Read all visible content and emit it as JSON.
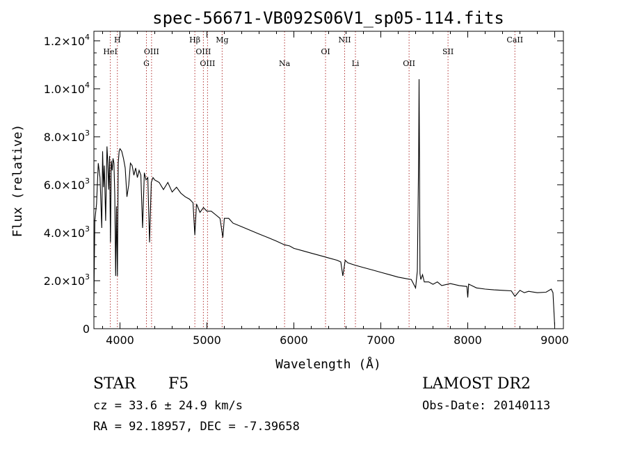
{
  "chart_data": {
    "type": "line",
    "title": "spec-56671-VB092S06V1_sp05-114.fits",
    "xlabel": "Wavelength (Å)",
    "ylabel": "Flux (relative)",
    "xlim": [
      3700,
      9100
    ],
    "ylim": [
      0,
      12400
    ],
    "xticks": [
      4000,
      5000,
      6000,
      7000,
      8000,
      9000
    ],
    "yticks": [
      {
        "value": 0,
        "mantissa": "0",
        "exp": ""
      },
      {
        "value": 2000,
        "mantissa": "2.0×10",
        "exp": "3"
      },
      {
        "value": 4000,
        "mantissa": "4.0×10",
        "exp": "3"
      },
      {
        "value": 6000,
        "mantissa": "6.0×10",
        "exp": "3"
      },
      {
        "value": 8000,
        "mantissa": "8.0×10",
        "exp": "3"
      },
      {
        "value": 10000,
        "mantissa": "1.0×10",
        "exp": "4"
      },
      {
        "value": 12000,
        "mantissa": "1.2×10",
        "exp": "4"
      }
    ],
    "grid": false,
    "line_color": "#000000",
    "marker_color": "#b03030",
    "series": [
      {
        "x": [
          3700,
          3710,
          3730,
          3750,
          3770,
          3790,
          3800,
          3810,
          3820,
          3835,
          3850,
          3860,
          3870,
          3880,
          3890,
          3900,
          3910,
          3920,
          3930,
          3940,
          3950,
          3960,
          3970,
          3980,
          3990,
          4000,
          4020,
          4040,
          4060,
          4080,
          4101,
          4120,
          4140,
          4160,
          4180,
          4200,
          4220,
          4240,
          4260,
          4280,
          4300,
          4320,
          4340,
          4360,
          4380,
          4400,
          4450,
          4500,
          4550,
          4600,
          4650,
          4700,
          4750,
          4800,
          4840,
          4861,
          4880,
          4920,
          4960,
          5000,
          5050,
          5100,
          5150,
          5183,
          5200,
          5250,
          5300,
          5400,
          5500,
          5600,
          5700,
          5800,
          5890,
          5950,
          6000,
          6100,
          6200,
          6300,
          6400,
          6500,
          6540,
          6563,
          6590,
          6620,
          6700,
          6800,
          6900,
          7000,
          7100,
          7200,
          7300,
          7350,
          7400,
          7420,
          7435,
          7440,
          7445,
          7450,
          7460,
          7480,
          7500,
          7550,
          7600,
          7650,
          7700,
          7800,
          7900,
          7990,
          8000,
          8010,
          8100,
          8200,
          8300,
          8400,
          8500,
          8542,
          8600,
          8650,
          8700,
          8800,
          8900,
          8960,
          8980,
          9000
        ],
        "y": [
          1200,
          4500,
          5200,
          6900,
          6300,
          4200,
          7400,
          5900,
          6800,
          4500,
          7600,
          6900,
          5800,
          7200,
          3600,
          7000,
          6600,
          7100,
          6900,
          5600,
          2200,
          5100,
          2200,
          6900,
          7400,
          7500,
          7400,
          7100,
          6700,
          5500,
          6000,
          6900,
          6800,
          6400,
          6700,
          6300,
          6600,
          6400,
          4200,
          6500,
          6200,
          6300,
          3600,
          6100,
          6300,
          6200,
          6100,
          5800,
          6100,
          5700,
          5900,
          5650,
          5500,
          5400,
          5250,
          3900,
          5200,
          4850,
          5050,
          4900,
          4900,
          4750,
          4600,
          3800,
          4600,
          4600,
          4400,
          4250,
          4100,
          3950,
          3800,
          3650,
          3500,
          3450,
          3350,
          3250,
          3150,
          3050,
          2950,
          2850,
          2780,
          2200,
          2850,
          2750,
          2650,
          2550,
          2450,
          2350,
          2250,
          2150,
          2080,
          2050,
          1700,
          2400,
          7200,
          10400,
          7100,
          2300,
          2050,
          2250,
          1950,
          1950,
          1850,
          1950,
          1800,
          1880,
          1800,
          1760,
          1300,
          1860,
          1700,
          1650,
          1620,
          1600,
          1580,
          1350,
          1600,
          1500,
          1560,
          1500,
          1520,
          1650,
          1500,
          120
        ]
      }
    ],
    "line_markers": [
      {
        "label": "H",
        "wavelength": 3970,
        "row": 0
      },
      {
        "label": "HeI",
        "wavelength": 3889,
        "row": 1
      },
      {
        "label": "OIII",
        "wavelength": 4363,
        "row": 1
      },
      {
        "label": "G",
        "wavelength": 4304,
        "row": 2
      },
      {
        "label": "Hβ",
        "wavelength": 4861,
        "row": 0
      },
      {
        "label": "OIII",
        "wavelength": 4959,
        "row": 1
      },
      {
        "label": "OIII",
        "wavelength": 5007,
        "row": 2
      },
      {
        "label": "Mg",
        "wavelength": 5175,
        "row": 0
      },
      {
        "label": "Na",
        "wavelength": 5893,
        "row": 2
      },
      {
        "label": "OI",
        "wavelength": 6364,
        "row": 1
      },
      {
        "label": "NII",
        "wavelength": 6584,
        "row": 0
      },
      {
        "label": "Li",
        "wavelength": 6708,
        "row": 2
      },
      {
        "label": "OII",
        "wavelength": 7325,
        "row": 2
      },
      {
        "label": "SII",
        "wavelength": 7773,
        "row": 1
      },
      {
        "label": "CaII",
        "wavelength": 8542,
        "row": 0
      }
    ]
  },
  "info": {
    "object_class": "STAR",
    "subclass": "F5",
    "survey": "LAMOST DR2",
    "redshift": "cz = 33.6 ± 24.9 km/s",
    "obs_date": "Obs-Date: 20140113",
    "coords": "RA =  92.18957, DEC =  -7.39658"
  }
}
